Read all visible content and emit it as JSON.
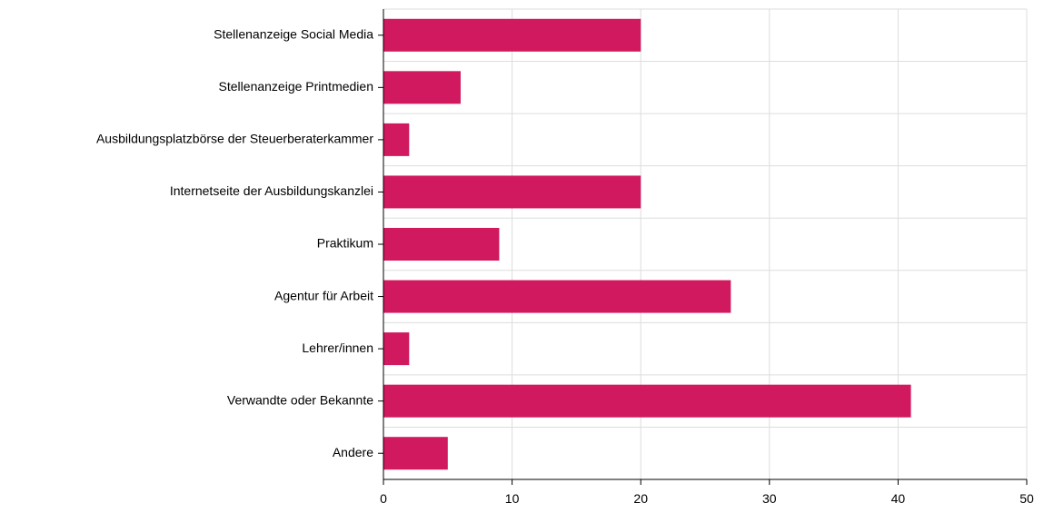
{
  "chart_data": {
    "type": "bar",
    "orientation": "horizontal",
    "categories": [
      "Stellenanzeige Social Media",
      "Stellenanzeige Printmedien",
      "Ausbildungsplatzbörse der Steuerberaterkammer",
      "Internetseite der Ausbildungskanzlei",
      "Praktikum",
      "Agentur für Arbeit",
      "Lehrer/innen",
      "Verwandte oder Bekannte",
      "Andere"
    ],
    "values": [
      20,
      6,
      2,
      20,
      9,
      27,
      2,
      41,
      5
    ],
    "title": "",
    "xlabel": "",
    "ylabel": "",
    "xlim": [
      0,
      50
    ],
    "xticks": [
      "0",
      "10",
      "20",
      "30",
      "40",
      "50"
    ],
    "grid": true,
    "legend": "none",
    "bar_color": "#D0195E",
    "grid_color": "#DDDDDD"
  }
}
